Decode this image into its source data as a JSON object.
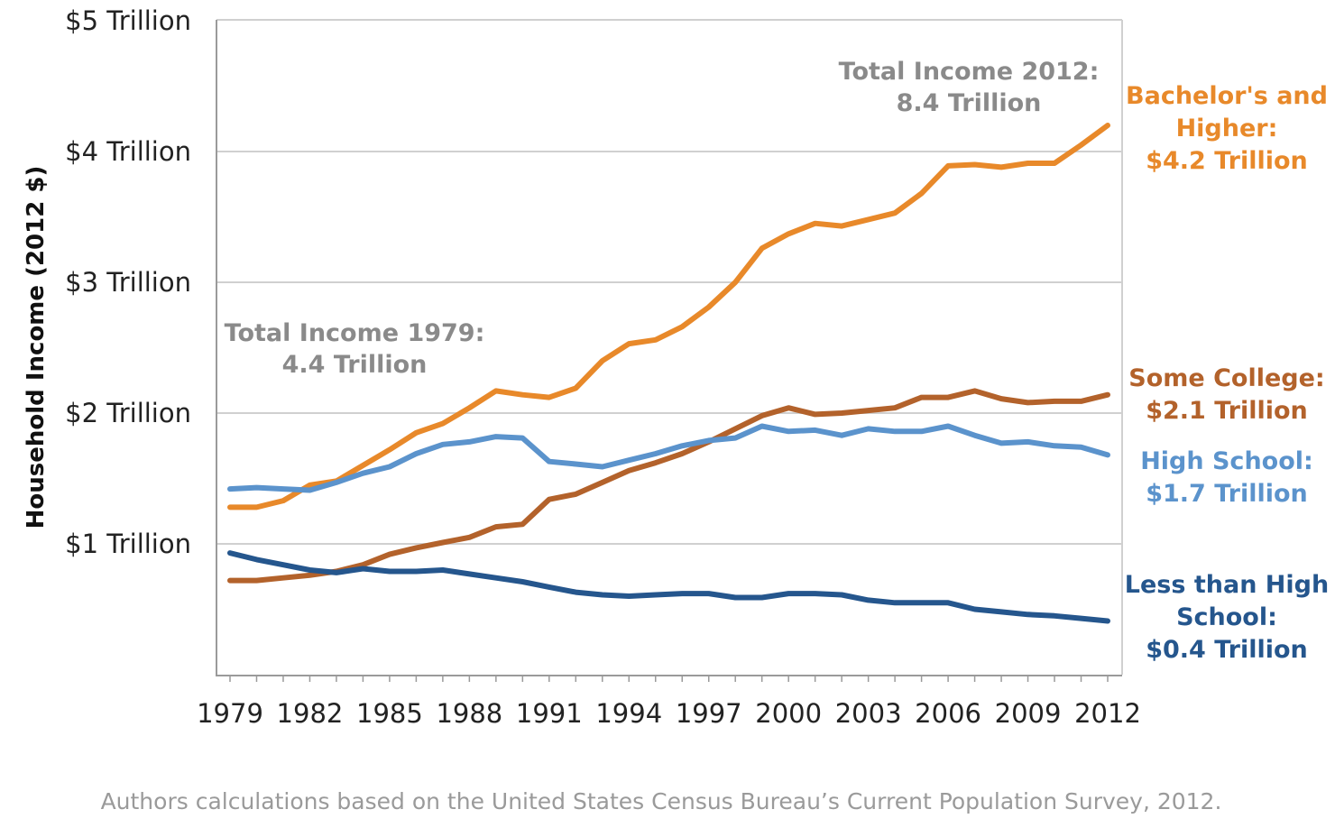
{
  "chart_data": {
    "type": "line",
    "title": "",
    "xlabel": "",
    "ylabel": "Household Income (2012 $)",
    "x": [
      1979,
      1980,
      1981,
      1982,
      1983,
      1984,
      1985,
      1986,
      1987,
      1988,
      1989,
      1990,
      1991,
      1992,
      1993,
      1994,
      1995,
      1996,
      1997,
      1998,
      1999,
      2000,
      2001,
      2002,
      2003,
      2004,
      2005,
      2006,
      2007,
      2008,
      2009,
      2010,
      2011,
      2012
    ],
    "xlim": [
      1979,
      2012
    ],
    "ylim": [
      0,
      5
    ],
    "x_tick_labels": [
      "1979",
      "1982",
      "1985",
      "1988",
      "1991",
      "1994",
      "1997",
      "2000",
      "2003",
      "2006",
      "2009",
      "2012"
    ],
    "y_ticks": [
      1,
      2,
      3,
      4,
      5
    ],
    "y_tick_labels": [
      "$1 Trillion",
      "$2 Trillion",
      "$3 Trillion",
      "$4 Trillion",
      "$5 Trillion"
    ],
    "grid": "horizontal",
    "series": [
      {
        "name": "Bachelor's and Higher",
        "color": "#e8892a",
        "values": [
          1.28,
          1.28,
          1.33,
          1.45,
          1.48,
          1.6,
          1.72,
          1.85,
          1.92,
          2.04,
          2.17,
          2.14,
          2.12,
          2.19,
          2.4,
          2.53,
          2.56,
          2.66,
          2.81,
          3.0,
          3.26,
          3.37,
          3.45,
          3.43,
          3.48,
          3.53,
          3.68,
          3.89,
          3.9,
          3.88,
          3.91,
          3.91,
          4.05,
          4.2
        ]
      },
      {
        "name": "Some College",
        "color": "#b3622b",
        "values": [
          0.72,
          0.72,
          0.74,
          0.76,
          0.79,
          0.84,
          0.92,
          0.97,
          1.01,
          1.05,
          1.13,
          1.15,
          1.34,
          1.38,
          1.47,
          1.56,
          1.62,
          1.69,
          1.78,
          1.88,
          1.98,
          2.04,
          1.99,
          2.0,
          2.02,
          2.04,
          2.12,
          2.12,
          2.17,
          2.11,
          2.08,
          2.09,
          2.09,
          2.14
        ]
      },
      {
        "name": "High School",
        "color": "#5b93cc",
        "values": [
          1.42,
          1.43,
          1.42,
          1.41,
          1.47,
          1.54,
          1.59,
          1.69,
          1.76,
          1.78,
          1.82,
          1.81,
          1.63,
          1.61,
          1.59,
          1.64,
          1.69,
          1.75,
          1.79,
          1.81,
          1.9,
          1.86,
          1.87,
          1.83,
          1.88,
          1.86,
          1.86,
          1.9,
          1.83,
          1.77,
          1.78,
          1.75,
          1.74,
          1.68
        ]
      },
      {
        "name": "Less than High School",
        "color": "#25568d",
        "values": [
          0.93,
          0.88,
          0.84,
          0.8,
          0.78,
          0.81,
          0.79,
          0.79,
          0.8,
          0.77,
          0.74,
          0.71,
          0.67,
          0.63,
          0.61,
          0.6,
          0.61,
          0.62,
          0.62,
          0.59,
          0.59,
          0.62,
          0.62,
          0.61,
          0.57,
          0.55,
          0.55,
          0.55,
          0.5,
          0.48,
          0.46,
          0.45,
          0.43,
          0.41
        ]
      }
    ],
    "series_labels": [
      {
        "lines": [
          "Bachelor's and",
          "Higher:",
          "$4.2 Trillion"
        ],
        "color": "#e8892a"
      },
      {
        "lines": [
          "Some College:",
          "$2.1 Trillion"
        ],
        "color": "#b3622b"
      },
      {
        "lines": [
          "High School:",
          "$1.7 Trillion"
        ],
        "color": "#5b93cc"
      },
      {
        "lines": [
          "Less than High",
          "School:",
          "$0.4 Trillion"
        ],
        "color": "#25568d"
      }
    ],
    "annotations": [
      {
        "lines": [
          "Total Income 1979:",
          "4.4 Trillion"
        ]
      },
      {
        "lines": [
          "Total Income 2012:",
          "8.4 Trillion"
        ]
      }
    ],
    "source": "Authors calculations based on the United States Census Bureau’s Current Population Survey, 2012."
  }
}
